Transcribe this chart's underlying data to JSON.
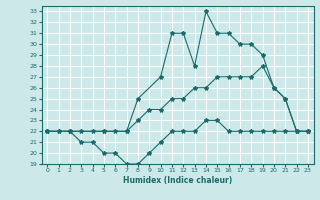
{
  "xlabel": "Humidex (Indice chaleur)",
  "bg_color": "#cce8e8",
  "grid_color": "#ffffff",
  "line_color": "#1a6b6b",
  "xlim": [
    -0.5,
    23.5
  ],
  "ylim": [
    19,
    33.5
  ],
  "xticks": [
    0,
    1,
    2,
    3,
    4,
    5,
    6,
    7,
    8,
    9,
    10,
    11,
    12,
    13,
    14,
    15,
    16,
    17,
    18,
    19,
    20,
    21,
    22,
    23
  ],
  "yticks": [
    19,
    20,
    21,
    22,
    23,
    24,
    25,
    26,
    27,
    28,
    29,
    30,
    31,
    32,
    33
  ],
  "line1_x": [
    0,
    1,
    2,
    3,
    4,
    5,
    6,
    7,
    8,
    9,
    10,
    11,
    12,
    13,
    14,
    15,
    16,
    17,
    18,
    19,
    20,
    21,
    22,
    23
  ],
  "line1_y": [
    22,
    22,
    22,
    21,
    21,
    20,
    20,
    19,
    19,
    20,
    21,
    22,
    22,
    22,
    23,
    23,
    22,
    22,
    22,
    22,
    22,
    22,
    22,
    22
  ],
  "line2_x": [
    0,
    1,
    2,
    3,
    4,
    5,
    6,
    7,
    8,
    9,
    10,
    11,
    12,
    13,
    14,
    15,
    16,
    17,
    18,
    19,
    20,
    21,
    22,
    23
  ],
  "line2_y": [
    22,
    22,
    22,
    22,
    22,
    22,
    22,
    22,
    23,
    24,
    24,
    25,
    25,
    26,
    26,
    27,
    27,
    27,
    27,
    28,
    26,
    25,
    22,
    22
  ],
  "line3_x": [
    0,
    2,
    5,
    7,
    8,
    10,
    11,
    12,
    13,
    14,
    15,
    16,
    17,
    18,
    19,
    20,
    21,
    22,
    23
  ],
  "line3_y": [
    22,
    22,
    22,
    22,
    25,
    27,
    31,
    31,
    28,
    33,
    31,
    31,
    30,
    30,
    29,
    26,
    25,
    22,
    22
  ]
}
